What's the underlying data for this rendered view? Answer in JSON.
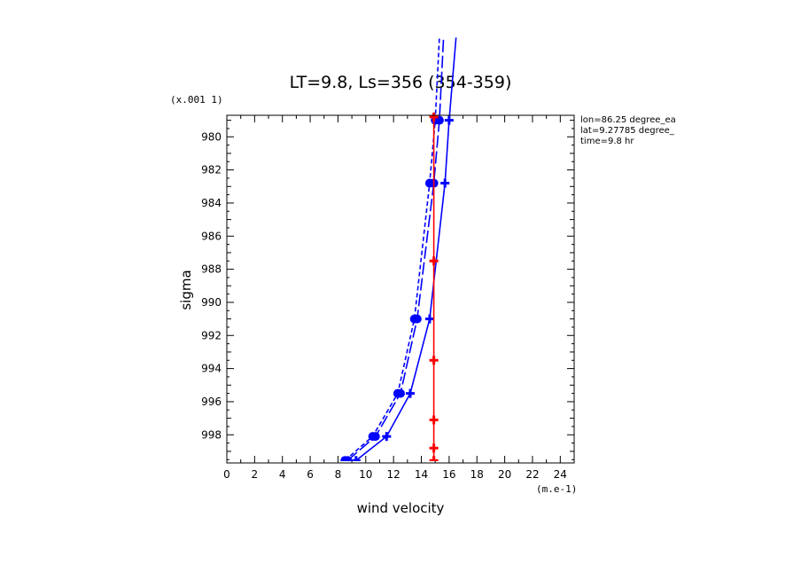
{
  "chart_data": {
    "type": "line",
    "title": "LT=9.8, Ls=356 (354-359)",
    "xlabel": "wind velocity",
    "ylabel": "sigma",
    "x_unit": "(m.e-1)",
    "y_scale_note": "(x.001 1)",
    "xlim": [
      0,
      25
    ],
    "ylim": [
      999.7,
      978.7
    ],
    "y_inverted": true,
    "x_ticks": [
      "0",
      "2",
      "4",
      "6",
      "8",
      "10",
      "12",
      "14",
      "16",
      "18",
      "20",
      "22",
      "24"
    ],
    "y_ticks": [
      "980",
      "982",
      "984",
      "986",
      "988",
      "990",
      "992",
      "994",
      "996",
      "998"
    ],
    "annotations": [
      "lon=86.25 degree_ea",
      "lat=9.27785 degree_",
      "time=9.8 hr"
    ],
    "series": [
      {
        "color": "#0000ff",
        "dash": "solid",
        "marker": "plus",
        "points": [
          [
            9.3,
            999.55
          ],
          [
            11.5,
            998.1
          ],
          [
            13.2,
            995.5
          ],
          [
            14.6,
            991.0
          ],
          [
            15.7,
            982.8
          ],
          [
            16.0,
            979.0
          ],
          [
            16.5,
            974.0
          ]
        ]
      },
      {
        "color": "#0000ff",
        "dash": "dashed-long",
        "marker": "dot",
        "points": [
          [
            8.7,
            999.55
          ],
          [
            10.7,
            998.1
          ],
          [
            12.5,
            995.5
          ],
          [
            13.7,
            991.0
          ],
          [
            14.9,
            982.8
          ],
          [
            15.3,
            979.0
          ],
          [
            15.6,
            974.0
          ]
        ]
      },
      {
        "color": "#0000ff",
        "dash": "dashed-short",
        "marker": "dot",
        "points": [
          [
            8.5,
            999.55
          ],
          [
            10.5,
            998.1
          ],
          [
            12.3,
            995.5
          ],
          [
            13.5,
            991.0
          ],
          [
            14.6,
            982.8
          ],
          [
            15.0,
            979.0
          ],
          [
            15.3,
            974.0
          ]
        ]
      },
      {
        "color": "#ff0000",
        "dash": "solid",
        "marker": "plus",
        "points": [
          [
            14.9,
            999.55
          ],
          [
            14.9,
            998.8
          ],
          [
            14.9,
            997.1
          ],
          [
            14.9,
            993.5
          ],
          [
            14.9,
            987.5
          ],
          [
            14.9,
            978.8
          ]
        ]
      }
    ]
  }
}
